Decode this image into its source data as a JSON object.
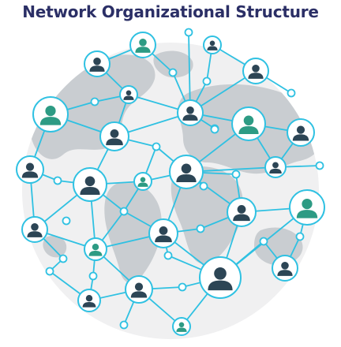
{
  "title": "Network Organizational Structure",
  "colors": {
    "globe": "#f0f0f1",
    "land": "#c9cdd1",
    "line": "#2fc1e2",
    "node_dark": "#2c4555",
    "node_teal": "#2d9b84",
    "ring_fill": "#ffffff"
  },
  "nodes": [
    {
      "id": "n1",
      "role": "person",
      "color": "teal"
    },
    {
      "id": "n2",
      "role": "person",
      "color": "dark"
    },
    {
      "id": "n3",
      "role": "person",
      "color": "dark"
    },
    {
      "id": "n4",
      "role": "person",
      "color": "dark"
    },
    {
      "id": "n5",
      "role": "person",
      "color": "teal"
    },
    {
      "id": "n6",
      "role": "person",
      "color": "dark"
    },
    {
      "id": "n7",
      "role": "person",
      "color": "dark"
    },
    {
      "id": "n8",
      "role": "person",
      "color": "dark"
    },
    {
      "id": "n9",
      "role": "person",
      "color": "teal"
    },
    {
      "id": "n10",
      "role": "person",
      "color": "dark"
    },
    {
      "id": "n11",
      "role": "person",
      "color": "dark"
    },
    {
      "id": "n12",
      "role": "person",
      "color": "dark"
    },
    {
      "id": "n13",
      "role": "person",
      "color": "teal"
    },
    {
      "id": "n14",
      "role": "person",
      "color": "dark"
    },
    {
      "id": "n15",
      "role": "person",
      "color": "dark"
    },
    {
      "id": "n16",
      "role": "person",
      "color": "dark"
    },
    {
      "id": "n17",
      "role": "person",
      "color": "teal"
    },
    {
      "id": "n18",
      "role": "person",
      "color": "dark"
    },
    {
      "id": "n19",
      "role": "person",
      "color": "dark"
    },
    {
      "id": "n20",
      "role": "person",
      "color": "teal"
    },
    {
      "id": "n21",
      "role": "person",
      "color": "teal"
    },
    {
      "id": "n22",
      "role": "person",
      "color": "dark"
    },
    {
      "id": "n23",
      "role": "person",
      "color": "dark"
    },
    {
      "id": "n24",
      "role": "person",
      "color": "dark"
    },
    {
      "id": "n25",
      "role": "person",
      "color": "dark"
    },
    {
      "id": "n26",
      "role": "person",
      "color": "teal"
    }
  ]
}
